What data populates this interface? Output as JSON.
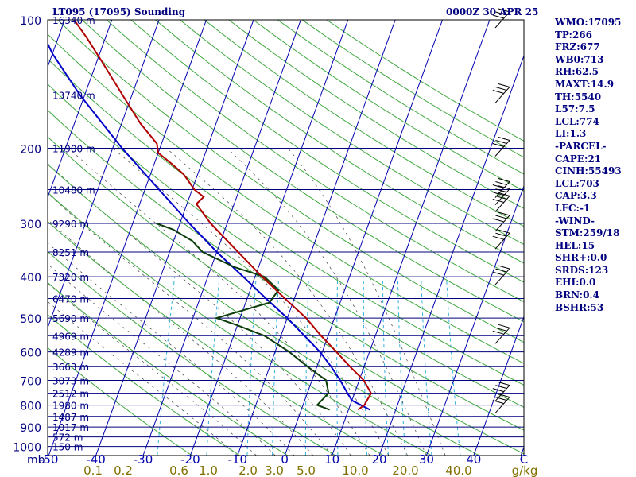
{
  "chart_data": {
    "type": "skew-t",
    "title": "LT095 (17095) Sounding",
    "datetime": "0000Z 30 APR 25",
    "pressure_unit_label": "mb",
    "pressure_ticks": [
      100,
      200,
      300,
      400,
      500,
      600,
      700,
      800,
      900,
      1000
    ],
    "temperature_ticks": [
      -50,
      -40,
      -30,
      -20,
      -10,
      0,
      10,
      20,
      30,
      40
    ],
    "temperature_end_label": "C",
    "mixing_ratio_ticks": [
      "0.1",
      "0.2",
      "0.6",
      "1.0",
      "2.0",
      "3.0",
      "5.0",
      "10.0",
      "20.0",
      "40.0"
    ],
    "mixing_ratio_unit": "g/kg",
    "height_levels": [
      {
        "p": 100,
        "label": "16340 m"
      },
      {
        "p": 150,
        "label": "13740 m"
      },
      {
        "p": 200,
        "label": "11900 m"
      },
      {
        "p": 250,
        "label": "10480 m"
      },
      {
        "p": 300,
        "label": "9290 m"
      },
      {
        "p": 350,
        "label": "8251 m"
      },
      {
        "p": 400,
        "label": "7320 m"
      },
      {
        "p": 450,
        "label": "6470 m"
      },
      {
        "p": 500,
        "label": "5690 m"
      },
      {
        "p": 550,
        "label": "4969 m"
      },
      {
        "p": 600,
        "label": "4289 m"
      },
      {
        "p": 650,
        "label": "3663 m"
      },
      {
        "p": 700,
        "label": "3073 m"
      },
      {
        "p": 750,
        "label": "2512 m"
      },
      {
        "p": 800,
        "label": "1980 m"
      },
      {
        "p": 850,
        "label": "1487 m"
      },
      {
        "p": 900,
        "label": "1017 m"
      },
      {
        "p": 950,
        "label": "572 m"
      },
      {
        "p": 1000,
        "label": "150 m"
      }
    ],
    "temperature_profile": [
      {
        "p": 820,
        "t": 12.0
      },
      {
        "p": 800,
        "t": 13.0
      },
      {
        "p": 750,
        "t": 13.5
      },
      {
        "p": 700,
        "t": 11.0
      },
      {
        "p": 650,
        "t": 7.0
      },
      {
        "p": 600,
        "t": 3.0
      },
      {
        "p": 550,
        "t": -1.5
      },
      {
        "p": 500,
        "t": -6.0
      },
      {
        "p": 450,
        "t": -12.0
      },
      {
        "p": 400,
        "t": -18.5
      },
      {
        "p": 350,
        "t": -25.5
      },
      {
        "p": 300,
        "t": -33.5
      },
      {
        "p": 270,
        "t": -38.0
      },
      {
        "p": 260,
        "t": -37.0
      },
      {
        "p": 250,
        "t": -39.5
      },
      {
        "p": 230,
        "t": -43.0
      },
      {
        "p": 215,
        "t": -47.0
      },
      {
        "p": 205,
        "t": -50.0
      },
      {
        "p": 195,
        "t": -51.0
      },
      {
        "p": 175,
        "t": -56.0
      },
      {
        "p": 150,
        "t": -62.0
      },
      {
        "p": 125,
        "t": -69.0
      },
      {
        "p": 110,
        "t": -74.0
      },
      {
        "p": 100,
        "t": -78.0
      },
      {
        "p": 95,
        "t": -79.0
      }
    ],
    "dewpoint_profile": [
      {
        "p": 820,
        "t": 6.0
      },
      {
        "p": 800,
        "t": 3.0
      },
      {
        "p": 750,
        "t": 4.5
      },
      {
        "p": 700,
        "t": 3.0
      },
      {
        "p": 650,
        "t": -2.0
      },
      {
        "p": 600,
        "t": -7.0
      },
      {
        "p": 550,
        "t": -13.5
      },
      {
        "p": 520,
        "t": -20.0
      },
      {
        "p": 500,
        "t": -25.0
      },
      {
        "p": 460,
        "t": -15.0
      },
      {
        "p": 430,
        "t": -14.0
      },
      {
        "p": 400,
        "t": -18.0
      },
      {
        "p": 380,
        "t": -25.0
      },
      {
        "p": 350,
        "t": -33.0
      },
      {
        "p": 330,
        "t": -36.0
      },
      {
        "p": 310,
        "t": -41.0
      },
      {
        "p": 300,
        "t": -45.0
      }
    ],
    "parcel_profile": [
      {
        "p": 820,
        "t": 14.5
      },
      {
        "p": 780,
        "t": 10.0
      },
      {
        "p": 750,
        "t": 8.5
      },
      {
        "p": 700,
        "t": 6.0
      },
      {
        "p": 650,
        "t": 3.0
      },
      {
        "p": 600,
        "t": -0.5
      },
      {
        "p": 550,
        "t": -5.0
      },
      {
        "p": 500,
        "t": -10.0
      },
      {
        "p": 450,
        "t": -16.0
      },
      {
        "p": 400,
        "t": -22.5
      },
      {
        "p": 350,
        "t": -30.0
      },
      {
        "p": 300,
        "t": -38.0
      },
      {
        "p": 250,
        "t": -47.0
      },
      {
        "p": 200,
        "t": -58.0
      },
      {
        "p": 150,
        "t": -71.0
      },
      {
        "p": 120,
        "t": -80.0
      },
      {
        "p": 100,
        "t": -86.0
      }
    ],
    "wind_barb_levels": [
      100,
      150,
      200,
      250,
      260,
      270,
      300,
      330,
      400,
      550,
      750,
      800
    ]
  },
  "stats": [
    "WMO:17095",
    "TP:266",
    "FRZ:677",
    "WB0:713",
    "RH:62.5",
    "MAXT:14.9",
    "TH:5540",
    "L57:7.5",
    "LCL:774",
    "LI:1.3",
    "-PARCEL-",
    "CAPE:21",
    "CINH:55493",
    "LCL:703",
    "CAP:3.3",
    "LFC:-1",
    "-WIND-",
    "STM:259/18",
    "HEL:15",
    "SHR+:0.0",
    "SRDS:123",
    "EHI:0.0",
    "BRN:0.4",
    "BSHR:53"
  ],
  "colors": {
    "isobar": "#00007f",
    "skewed_isotherm": "#0000b0",
    "dry_adiabat": "#3fa83f",
    "moist_adiabat": "#000000",
    "mixing_ratio": "#33b0dd",
    "temperature": "#b00000",
    "dewpoint": "#0a3d0a",
    "parcel": "#0000c8",
    "labels": "#000080",
    "bottom_axis_primary": "#0000b0",
    "bottom_axis_secondary": "#807000",
    "wind_barb": "#000000"
  }
}
